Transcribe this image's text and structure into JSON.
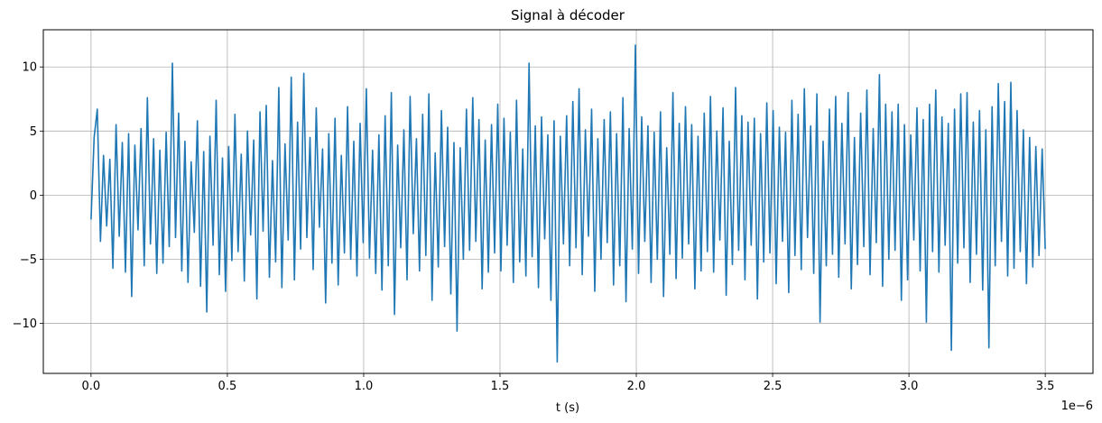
{
  "chart_data": {
    "type": "line",
    "title": "Signal à décoder",
    "xlabel": "t (s)",
    "ylabel": "",
    "x_offset_label": "1e−6",
    "xlim": [
      -0.175,
      3.675
    ],
    "ylim": [
      -13.9,
      12.9
    ],
    "grid": true,
    "line_color": "#1f77b4",
    "x_ticks": [
      0.0,
      0.5,
      1.0,
      1.5,
      2.0,
      2.5,
      3.0,
      3.5
    ],
    "x_tick_labels": [
      "0.0",
      "0.5",
      "1.0",
      "1.5",
      "2.0",
      "2.5",
      "3.0",
      "3.5"
    ],
    "y_ticks": [
      -10,
      -5,
      0,
      5,
      10
    ],
    "y_tick_labels": [
      "−10",
      "−5",
      "0",
      "5",
      "10"
    ],
    "series": [
      {
        "x_start": 0.0,
        "x_end": 3.5,
        "x_unit_scale": "1e-6",
        "values": [
          -1.9,
          4.5,
          6.7,
          -3.6,
          3.1,
          -2.4,
          2.8,
          -5.7,
          5.5,
          -3.2,
          4.1,
          -6.0,
          4.8,
          -7.9,
          3.9,
          -2.7,
          5.2,
          -5.5,
          7.6,
          -3.8,
          4.4,
          -6.1,
          3.5,
          -5.3,
          4.9,
          -4.0,
          10.3,
          -3.3,
          6.4,
          -5.9,
          4.2,
          -6.8,
          2.6,
          -2.9,
          5.8,
          -7.1,
          3.4,
          -9.1,
          4.6,
          -3.9,
          7.4,
          -6.2,
          2.9,
          -7.5,
          3.8,
          -5.1,
          6.3,
          -4.4,
          3.2,
          -6.7,
          5.0,
          -3.1,
          4.3,
          -8.1,
          6.5,
          -2.8,
          7.0,
          -6.4,
          2.7,
          -5.2,
          8.4,
          -7.2,
          4.0,
          -3.5,
          9.2,
          -6.6,
          5.7,
          -4.2,
          9.5,
          -3.3,
          4.5,
          -5.8,
          6.8,
          -2.5,
          3.6,
          -8.4,
          4.8,
          -5.3,
          6.0,
          -7.0,
          3.1,
          -4.5,
          6.9,
          -5.0,
          4.2,
          -6.3,
          5.6,
          -3.7,
          8.3,
          -4.9,
          3.5,
          -6.1,
          4.7,
          -7.4,
          6.2,
          -5.5,
          8.0,
          -9.3,
          3.9,
          -4.1,
          5.1,
          -6.6,
          7.7,
          -3.0,
          4.4,
          -5.9,
          6.3,
          -4.7,
          7.9,
          -8.2,
          3.3,
          -5.6,
          6.6,
          -4.0,
          5.3,
          -7.7,
          4.1,
          -10.6,
          3.7,
          -5.0,
          6.7,
          -4.3,
          7.6,
          -3.6,
          5.9,
          -7.3,
          4.3,
          -6.0,
          5.5,
          -4.5,
          7.1,
          -5.9,
          6.0,
          -3.9,
          4.9,
          -6.8,
          7.4,
          -5.2,
          3.6,
          -6.3,
          10.3,
          -4.8,
          5.4,
          -7.2,
          6.1,
          -3.4,
          4.7,
          -8.2,
          5.8,
          -13.0,
          4.6,
          -3.8,
          6.2,
          -5.5,
          7.3,
          -4.1,
          8.3,
          -6.2,
          5.1,
          -3.2,
          6.7,
          -7.5,
          4.4,
          -5.0,
          5.9,
          -3.7,
          6.5,
          -7.0,
          4.8,
          -5.5,
          7.6,
          -8.3,
          5.2,
          -4.2,
          11.7,
          -6.1,
          6.1,
          -3.6,
          5.4,
          -6.8,
          4.9,
          -5.0,
          6.5,
          -7.9,
          3.7,
          -4.6,
          8.0,
          -6.5,
          5.6,
          -4.9,
          6.9,
          -3.8,
          5.5,
          -7.3,
          4.6,
          -5.9,
          6.4,
          -4.4,
          7.7,
          -6.0,
          5.0,
          -3.5,
          6.8,
          -7.8,
          4.2,
          -5.4,
          8.4,
          -4.3,
          6.2,
          -6.6,
          5.7,
          -3.9,
          6.0,
          -8.1,
          4.8,
          -5.2,
          7.2,
          -4.5,
          6.6,
          -6.9,
          5.3,
          -3.6,
          4.9,
          -7.6,
          7.4,
          -4.7,
          6.3,
          -5.8,
          8.3,
          -3.3,
          5.4,
          -6.1,
          7.9,
          -9.9,
          4.2,
          -5.5,
          6.7,
          -4.6,
          7.7,
          -6.4,
          5.6,
          -3.8,
          8.0,
          -7.3,
          4.5,
          -5.4,
          6.4,
          -4.0,
          8.2,
          -6.2,
          5.2,
          -3.7,
          9.4,
          -7.1,
          7.1,
          -5.0,
          6.5,
          -4.3,
          7.1,
          -8.2,
          5.5,
          -6.6,
          4.7,
          -3.5,
          6.8,
          -5.9,
          5.9,
          -9.9,
          7.1,
          -4.4,
          8.2,
          -6.0,
          6.1,
          -3.9,
          5.6,
          -12.1,
          6.7,
          -5.3,
          7.9,
          -4.1,
          8.0,
          -6.8,
          5.7,
          -4.6,
          6.6,
          -7.4,
          5.1,
          -11.9,
          6.9,
          -5.5,
          8.7,
          -3.6,
          7.3,
          -6.3,
          8.8,
          -5.7,
          6.6,
          -4.4,
          5.1,
          -6.9,
          4.5,
          -5.6,
          3.8,
          -4.7,
          3.6,
          -4.2
        ]
      }
    ]
  }
}
